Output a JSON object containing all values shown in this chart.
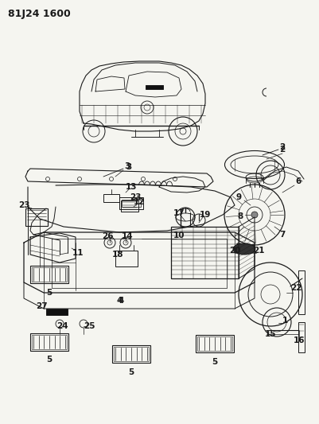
{
  "title_code": "81J24 1600",
  "bg_color": "#f5f5f0",
  "line_color": "#1a1a1a",
  "fig_width": 4.01,
  "fig_height": 5.33,
  "dpi": 100
}
